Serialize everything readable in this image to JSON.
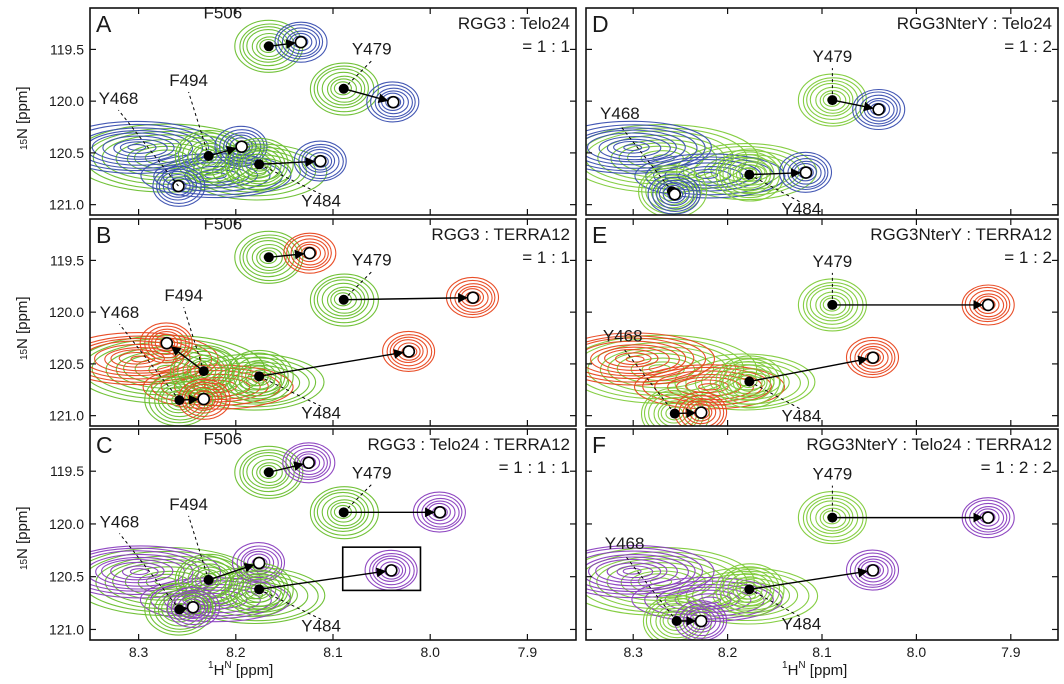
{
  "figure": {
    "panels": [
      {
        "letter": "A",
        "condition": "RGG3 : Telo24",
        "ratio": "= 1 : 1",
        "ref_color": "#6abf2e",
        "bound_color": "#3a4fb0",
        "residues": [
          {
            "name": "F506",
            "free": [
              8.166,
              119.47
            ],
            "bound": [
              8.133,
              119.43
            ]
          },
          {
            "name": "Y479",
            "free": [
              8.089,
              119.88
            ],
            "bound": [
              8.038,
              120.01
            ]
          },
          {
            "name": "F494",
            "free": [
              8.228,
              120.53
            ],
            "bound": [
              8.194,
              120.44
            ]
          },
          {
            "name": "Y484",
            "free": [
              8.176,
              120.61
            ],
            "bound": [
              8.113,
              120.58
            ]
          },
          {
            "name": "Y468",
            "free": null,
            "bound": [
              8.259,
              120.82
            ]
          }
        ]
      },
      {
        "letter": "D",
        "condition": "RGG3NterY : Telo24",
        "ratio": "= 1 : 2",
        "ref_color": "#7fcb3a",
        "bound_color": "#3a4fb0",
        "residues": [
          {
            "name": "Y479",
            "free": [
              8.089,
              119.99
            ],
            "bound": [
              8.04,
              120.08
            ]
          },
          {
            "name": "Y484",
            "free": [
              8.177,
              120.71
            ],
            "bound": [
              8.117,
              120.69
            ]
          },
          {
            "name": "Y468",
            "free": [
              8.259,
              120.87
            ],
            "bound": [
              8.256,
              120.9
            ]
          }
        ]
      },
      {
        "letter": "B",
        "condition": "RGG3 : TERRA12",
        "ratio": "= 1 : 1",
        "ref_color": "#6abf2e",
        "bound_color": "#e8461e",
        "residues": [
          {
            "name": "F506",
            "free": [
              8.166,
              119.47
            ],
            "bound": [
              8.124,
              119.43
            ]
          },
          {
            "name": "Y479",
            "free": [
              8.089,
              119.88
            ],
            "bound": [
              7.956,
              119.86
            ]
          },
          {
            "name": "F494",
            "free": [
              8.233,
              120.57
            ],
            "bound": [
              8.271,
              120.3
            ]
          },
          {
            "name": "Y484",
            "free": [
              8.176,
              120.62
            ],
            "bound": [
              8.022,
              120.38
            ]
          },
          {
            "name": "Y468",
            "free": [
              8.258,
              120.85
            ],
            "bound": [
              8.233,
              120.84
            ]
          }
        ]
      },
      {
        "letter": "E",
        "condition": "RGG3NterY : TERRA12",
        "ratio": "= 1 : 2",
        "ref_color": "#7fcb3a",
        "bound_color": "#e8461e",
        "residues": [
          {
            "name": "Y479",
            "free": [
              8.089,
              119.93
            ],
            "bound": [
              7.924,
              119.93
            ]
          },
          {
            "name": "Y484",
            "free": [
              8.177,
              120.67
            ],
            "bound": [
              8.046,
              120.44
            ]
          },
          {
            "name": "Y468",
            "free": [
              8.256,
              120.98
            ],
            "bound": [
              8.228,
              120.97
            ]
          }
        ]
      },
      {
        "letter": "C",
        "condition": "RGG3 : Telo24 : TERRA12",
        "ratio": "= 1 : 1 : 1",
        "ref_color": "#6abf2e",
        "bound_color": "#8a3fbf",
        "residues": [
          {
            "name": "F506",
            "free": [
              8.166,
              119.51
            ],
            "bound": [
              8.125,
              119.42
            ]
          },
          {
            "name": "Y479",
            "free": [
              8.089,
              119.89
            ],
            "bound": [
              7.99,
              119.89
            ]
          },
          {
            "name": "F494",
            "free": [
              8.228,
              120.53
            ],
            "bound": [
              8.176,
              120.37
            ]
          },
          {
            "name": "Y484",
            "free": [
              8.176,
              120.62
            ],
            "bound": [
              8.04,
              120.44
            ]
          },
          {
            "name": "Y468",
            "free": [
              8.258,
              120.81
            ],
            "bound": [
              8.244,
              120.79
            ]
          }
        ]
      },
      {
        "letter": "F",
        "condition": "RGG3NterY : Telo24 : TERRA12",
        "ratio": "= 1 : 2 : 2",
        "ref_color": "#7fcb3a",
        "bound_color": "#8a3fbf",
        "residues": [
          {
            "name": "Y479",
            "free": [
              8.089,
              119.94
            ],
            "bound": [
              7.924,
              119.94
            ]
          },
          {
            "name": "Y484",
            "free": [
              8.177,
              120.62
            ],
            "bound": [
              8.046,
              120.44
            ]
          },
          {
            "name": "Y468",
            "free": [
              8.254,
              120.92
            ],
            "bound": [
              8.228,
              120.92
            ]
          }
        ]
      }
    ]
  },
  "chart_data": {
    "type": "scatter",
    "xlabel_main": "H",
    "xlabel_sup_pre": "1",
    "xlabel_sup_post": "N",
    "xlabel_unit": " [ppm]",
    "ylabel_sup": "15",
    "ylabel_main": "N [ppm]",
    "xlim": [
      8.35,
      7.85
    ],
    "ylim": [
      119.1,
      121.1
    ],
    "x_ticks": [
      "8.3",
      "8.2",
      "8.1",
      "8.0",
      "7.9"
    ],
    "x_tick_values": [
      8.3,
      8.2,
      8.1,
      8.0,
      7.9
    ],
    "y_ticks": [
      "119.5",
      "120.0",
      "120.5",
      "121.0"
    ],
    "y_tick_values": [
      119.5,
      120.0,
      120.5,
      121.0
    ],
    "highlight_box": {
      "panel": "C",
      "x_range": [
        8.09,
        8.01
      ],
      "y_range": [
        120.22,
        120.63
      ]
    }
  }
}
